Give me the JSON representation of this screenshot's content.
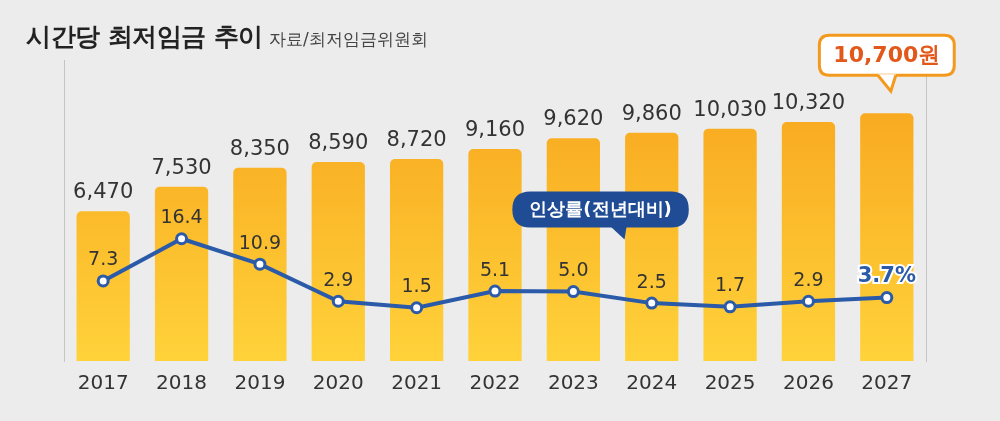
{
  "chart_data": {
    "type": "bar",
    "title": "시간당 최저임금 추이",
    "subtitle": "자료/최저임금위원회",
    "categories": [
      "2017",
      "2018",
      "2019",
      "2020",
      "2021",
      "2022",
      "2023",
      "2024",
      "2025",
      "2026",
      "2027"
    ],
    "series": [
      {
        "type": "bar",
        "color": "#f7a21b",
        "values": [
          6470,
          7530,
          8350,
          8590,
          8720,
          9160,
          9620,
          9860,
          10030,
          10320,
          10700
        ],
        "value_labels": [
          "6,470",
          "7,530",
          "8,350",
          "8,590",
          "8,720",
          "9,160",
          "9,620",
          "9,860",
          "10,030",
          "10,320",
          "10,700원"
        ]
      },
      {
        "name": "인상률(전년대비)",
        "type": "line",
        "axis": "y2",
        "color": "#2b5aa8",
        "marker": "circle",
        "line_style": "solid",
        "values": [
          7.3,
          16.4,
          10.9,
          2.9,
          1.5,
          5.1,
          5.0,
          2.5,
          1.7,
          2.9,
          3.7
        ],
        "value_labels": [
          "7.3",
          "16.4",
          "10.9",
          "2.9",
          "1.5",
          "5.1",
          "5.0",
          "2.5",
          "1.7",
          "2.9",
          "3.7%"
        ]
      }
    ],
    "ylim": [
      0,
      13000
    ],
    "y2lim": [
      -10,
      55
    ],
    "grid": false,
    "tick_labels": "x",
    "data_labels": true
  }
}
